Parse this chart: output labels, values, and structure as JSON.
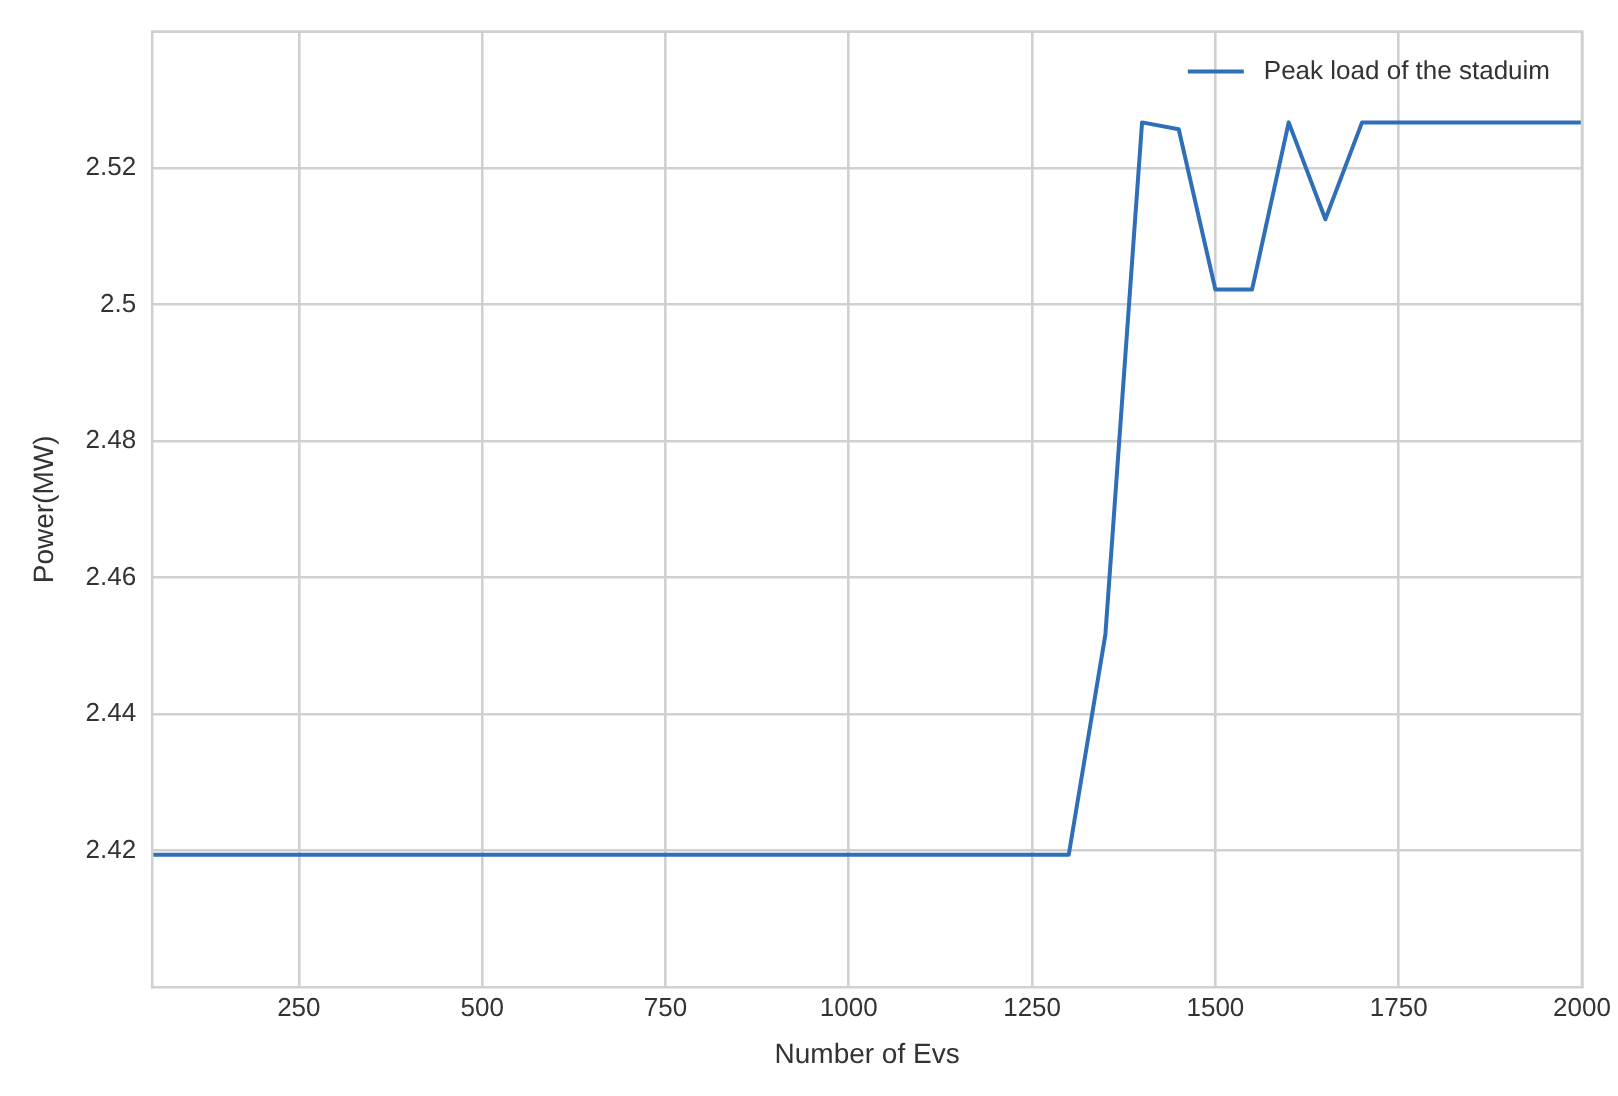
{
  "chart_data": {
    "type": "line",
    "xlabel": "Number of Evs",
    "ylabel": "Power(MW)",
    "x": [
      50,
      1300,
      1350,
      1400,
      1450,
      1500,
      1550,
      1600,
      1650,
      1700,
      1750,
      1800,
      1850,
      1900,
      1950,
      2000
    ],
    "series": [
      {
        "name": "Peak load of the staduim",
        "color": "#2e6fb7",
        "values": [
          2.4194,
          2.4194,
          2.4517,
          2.5267,
          2.5257,
          2.5022,
          2.5022,
          2.5267,
          2.5125,
          2.5267,
          2.5267,
          2.5267,
          2.5267,
          2.5267,
          2.5267,
          2.5267
        ]
      }
    ],
    "xlim": [
      50,
      2000
    ],
    "xticks": [
      250,
      500,
      750,
      1000,
      1250,
      1500,
      1750,
      2000
    ],
    "ylim": [
      2.4,
      2.54
    ],
    "yticks": [
      2.42,
      2.44,
      2.46,
      2.48,
      2.5,
      2.52
    ],
    "grid": true,
    "legend": "top right",
    "marker": "none",
    "line_style": "solid"
  }
}
